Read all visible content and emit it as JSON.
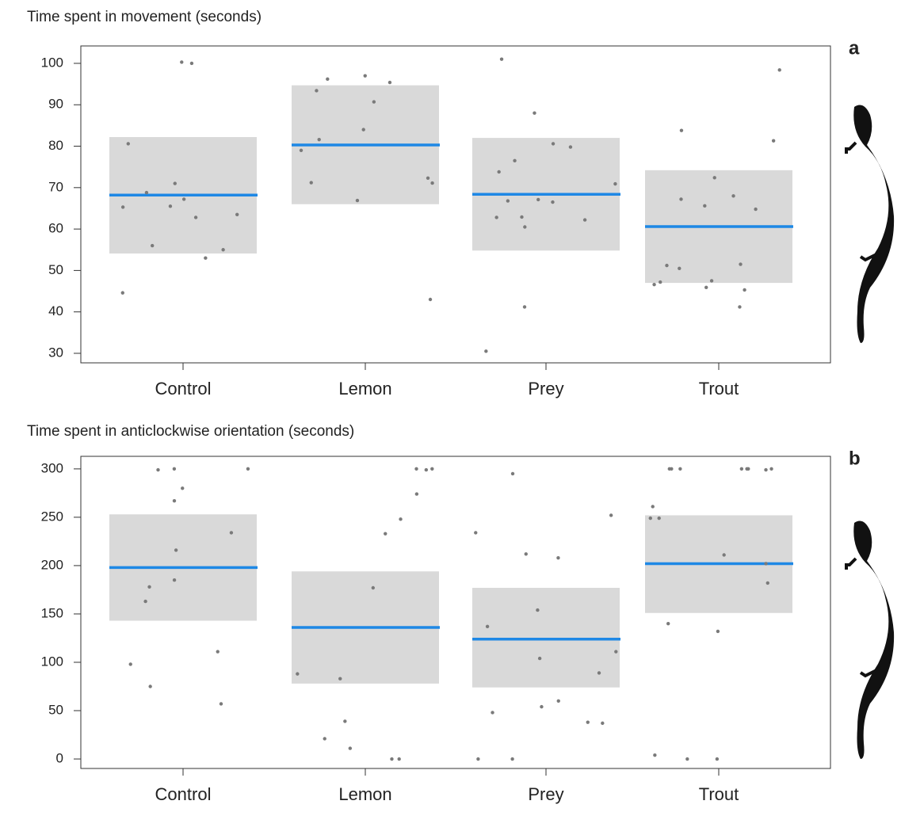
{
  "chart_data": [
    {
      "type": "crossbar",
      "title": "Time spent in movement (seconds)",
      "panel_label": "a",
      "categories": [
        "Control",
        "Lemon",
        "Prey",
        "Trout"
      ],
      "mean": [
        68.2,
        80.3,
        68.4,
        60.6
      ],
      "lower": [
        54.1,
        66,
        54.8,
        47
      ],
      "upper": [
        82.2,
        94.7,
        82,
        74.2
      ],
      "points": [
        [
          100.3,
          100,
          80.6,
          68.8,
          71,
          67.2,
          65.3,
          63.5,
          62.8,
          65.5,
          56,
          55,
          53,
          44.6
        ],
        [
          97,
          96.2,
          95.4,
          93.4,
          90.7,
          84,
          81.6,
          79,
          72.3,
          71.1,
          71.2,
          66.9,
          43
        ],
        [
          101,
          88,
          80.6,
          79.8,
          76.5,
          73.8,
          70.9,
          67.1,
          66.8,
          66.5,
          62.9,
          62.8,
          62.2,
          60.5,
          41.2,
          30.5
        ],
        [
          98.4,
          83.8,
          81.3,
          72.4,
          67.2,
          68,
          65.6,
          64.8,
          51.5,
          51.2,
          50.5,
          47.5,
          47.2,
          46.6,
          45.9,
          45.3,
          41.2
        ]
      ],
      "ylim": [
        27.7,
        104.2
      ],
      "yticks": [
        30,
        40,
        50,
        60,
        70,
        80,
        90,
        100
      ],
      "box_color": "#d9d9d9",
      "line_color": "#1e88e5",
      "point_color": "#7a7a7a"
    },
    {
      "type": "crossbar",
      "title": "Time spent in anticlockwise orientation (seconds)",
      "panel_label": "b",
      "categories": [
        "Control",
        "Lemon",
        "Prey",
        "Trout"
      ],
      "mean": [
        198,
        136,
        124,
        202
      ],
      "lower": [
        143,
        78,
        74,
        151
      ],
      "upper": [
        253,
        194,
        177,
        252
      ],
      "points": [
        [
          300,
          299,
          300,
          280,
          267,
          234,
          216,
          185,
          178,
          163,
          111,
          98,
          75,
          57
        ],
        [
          300,
          300,
          299,
          274,
          248,
          233,
          177,
          88,
          83,
          39,
          21,
          11,
          0,
          0
        ],
        [
          295,
          252,
          234,
          212,
          208,
          154,
          137,
          111,
          104,
          89,
          60,
          54,
          48,
          38,
          37,
          0,
          0
        ],
        [
          300,
          300,
          300,
          300,
          300,
          300,
          299,
          300,
          261,
          249,
          249,
          211,
          202,
          182,
          140,
          132,
          4,
          0,
          0
        ]
      ],
      "ylim": [
        -9.8,
        313
      ],
      "yticks": [
        0,
        50,
        100,
        150,
        200,
        250,
        300
      ],
      "box_color": "#d9d9d9",
      "line_color": "#1e88e5",
      "point_color": "#7a7a7a"
    }
  ]
}
